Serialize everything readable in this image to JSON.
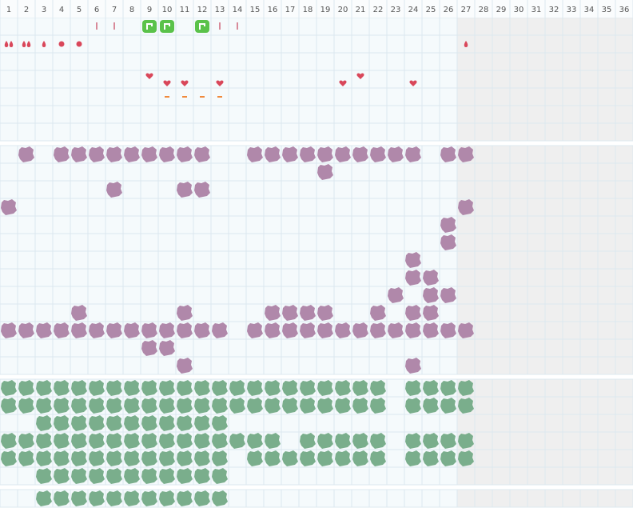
{
  "columns": [
    1,
    2,
    3,
    4,
    5,
    6,
    7,
    8,
    9,
    10,
    11,
    12,
    13,
    14,
    15,
    16,
    17,
    18,
    19,
    20,
    21,
    22,
    23,
    24,
    25,
    26,
    27,
    28,
    29,
    30,
    31,
    32,
    33,
    34,
    35,
    36
  ],
  "shaded_from": 27,
  "top": {
    "bars": [
      6,
      7,
      13,
      14
    ],
    "green_icons": [
      9,
      10,
      12
    ],
    "double_drops": [
      1,
      2
    ],
    "drops": [
      3,
      27
    ],
    "dots": [
      4,
      5
    ],
    "hearts_high": [
      9,
      21
    ],
    "hearts_low": [
      10,
      11,
      13,
      20,
      24
    ],
    "dashes": [
      10,
      11,
      12,
      13
    ]
  },
  "purple_rows": [
    [
      2,
      4,
      5,
      6,
      7,
      8,
      9,
      10,
      11,
      12,
      15,
      16,
      17,
      18,
      19,
      20,
      21,
      22,
      23,
      24,
      26,
      27
    ],
    [
      19
    ],
    [
      7,
      11,
      12
    ],
    [
      1,
      27
    ],
    [
      26
    ],
    [
      26
    ],
    [
      24
    ],
    [
      24,
      25
    ],
    [
      23,
      25,
      26
    ],
    [
      5,
      11,
      16,
      17,
      18,
      19,
      22,
      24,
      25
    ],
    [
      1,
      2,
      3,
      4,
      5,
      6,
      7,
      8,
      9,
      10,
      11,
      12,
      13,
      15,
      16,
      17,
      18,
      19,
      20,
      21,
      22,
      23,
      24,
      25,
      26,
      27
    ],
    [
      9,
      10
    ],
    [
      11,
      24
    ]
  ],
  "green_rows": [
    [
      1,
      2,
      3,
      4,
      5,
      6,
      7,
      8,
      9,
      10,
      11,
      12,
      13,
      14,
      15,
      16,
      17,
      18,
      19,
      20,
      21,
      22,
      24,
      25,
      26,
      27
    ],
    [
      1,
      2,
      3,
      4,
      5,
      6,
      7,
      8,
      9,
      10,
      11,
      12,
      13,
      14,
      15,
      16,
      17,
      18,
      19,
      20,
      21,
      22,
      24,
      25,
      26,
      27
    ],
    [
      3,
      4,
      5,
      6,
      7,
      8,
      9,
      10,
      11,
      12,
      13
    ],
    [
      1,
      2,
      3,
      4,
      5,
      6,
      7,
      8,
      9,
      10,
      11,
      12,
      13,
      14,
      15,
      16,
      18,
      19,
      20,
      21,
      22,
      24,
      25,
      26,
      27
    ],
    [
      1,
      2,
      3,
      4,
      5,
      6,
      7,
      8,
      9,
      10,
      11,
      12,
      13,
      15,
      16,
      17,
      18,
      19,
      20,
      21,
      22,
      24,
      25,
      26,
      27
    ],
    [
      3,
      4,
      5,
      6,
      7,
      8,
      9,
      10,
      11,
      12,
      13
    ]
  ],
  "bottom_rows": [
    [
      3,
      4,
      5,
      6,
      7,
      8,
      9,
      10,
      11,
      12,
      13
    ]
  ]
}
